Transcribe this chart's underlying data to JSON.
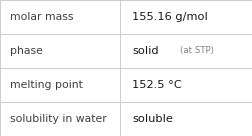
{
  "rows": [
    {
      "label": "molar mass",
      "value": "155.16 g/mol",
      "suffix": "",
      "mixed": false
    },
    {
      "label": "phase",
      "value": "solid",
      "suffix": " (at STP)",
      "mixed": true
    },
    {
      "label": "melting point",
      "value": "152.5 °C",
      "suffix": "",
      "mixed": false
    },
    {
      "label": "solubility in water",
      "value": "soluble",
      "suffix": "",
      "mixed": false
    }
  ],
  "bg_color": "#ffffff",
  "border_color": "#cccccc",
  "label_color": "#404040",
  "value_color": "#1a1a1a",
  "suffix_color": "#808080",
  "label_fontsize": 7.8,
  "value_fontsize": 8.2,
  "suffix_fontsize": 6.2,
  "col_split": 0.475
}
